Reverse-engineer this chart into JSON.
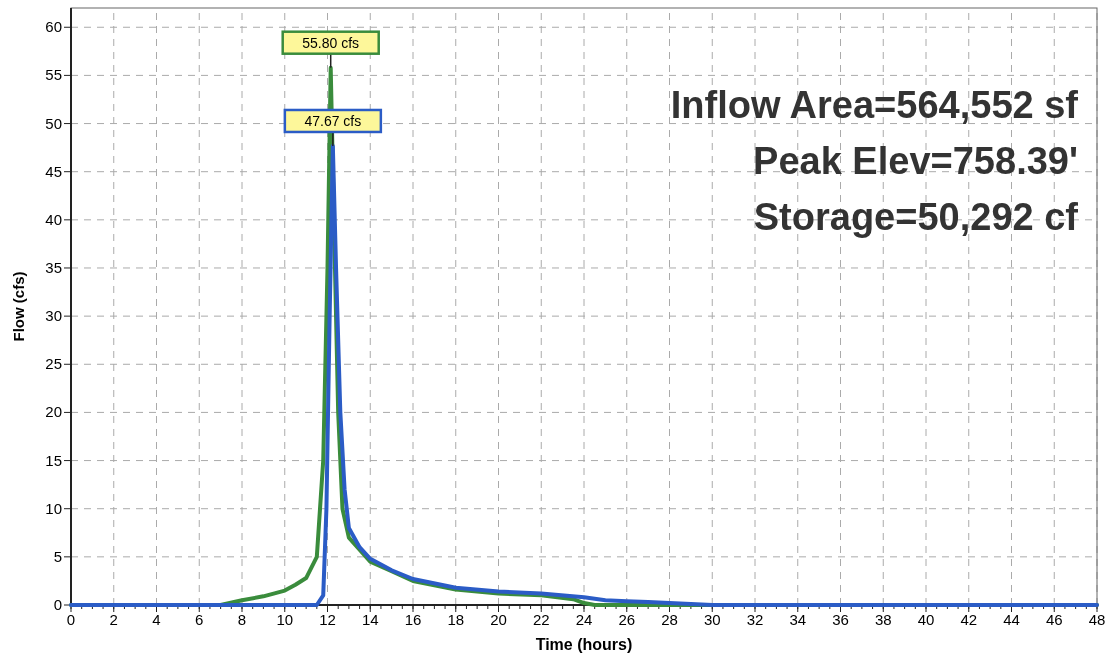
{
  "chart_data": {
    "type": "line",
    "xlabel": "Time  (hours)",
    "ylabel": "Flow  (cfs)",
    "xlim": [
      0,
      48
    ],
    "ylim": [
      0,
      62
    ],
    "xticks": [
      0,
      2,
      4,
      6,
      8,
      10,
      12,
      14,
      16,
      18,
      20,
      22,
      24,
      26,
      28,
      30,
      32,
      34,
      36,
      38,
      40,
      42,
      44,
      46,
      48
    ],
    "yticks": [
      0,
      5,
      10,
      15,
      20,
      25,
      30,
      35,
      40,
      45,
      50,
      55,
      60
    ],
    "grid": true,
    "marker": "none",
    "line_style": "solid",
    "series": [
      {
        "color": "#3a8c3c",
        "x": [
          0,
          7,
          8,
          9,
          10,
          10.5,
          11,
          11.5,
          11.8,
          12.0,
          12.15,
          12.3,
          12.5,
          12.7,
          13,
          14,
          15,
          16,
          18,
          20,
          22,
          23.5,
          24,
          24.5,
          48
        ],
        "values": [
          0,
          0,
          0.5,
          0.9,
          1.5,
          2.1,
          2.8,
          5,
          15,
          35,
          55.8,
          40,
          20,
          10,
          7,
          4.5,
          3.5,
          2.5,
          1.6,
          1.2,
          1.0,
          0.6,
          0.2,
          0,
          0
        ]
      },
      {
        "color": "#2b5cc6",
        "x": [
          0,
          11.5,
          11.8,
          11.95,
          12.1,
          12.25,
          12.4,
          12.6,
          12.8,
          13,
          13.5,
          14,
          15,
          16,
          18,
          20,
          22,
          24,
          25,
          26,
          27,
          28,
          29,
          30,
          48
        ],
        "values": [
          0,
          0,
          1,
          10,
          30,
          47.67,
          35,
          20,
          12,
          8,
          6,
          4.8,
          3.6,
          2.7,
          1.8,
          1.4,
          1.2,
          0.8,
          0.5,
          0.4,
          0.3,
          0.2,
          0.1,
          0,
          0
        ]
      }
    ],
    "annotations": [
      {
        "text": "55.80 cfs",
        "x": 12.15,
        "y": 55.8
      },
      {
        "text": "47.67 cfs",
        "x": 12.25,
        "y": 47.67
      },
      "Inflow Area=564,552 sf",
      "Peak Elev=758.39'",
      "Storage=50,292 cf"
    ]
  }
}
